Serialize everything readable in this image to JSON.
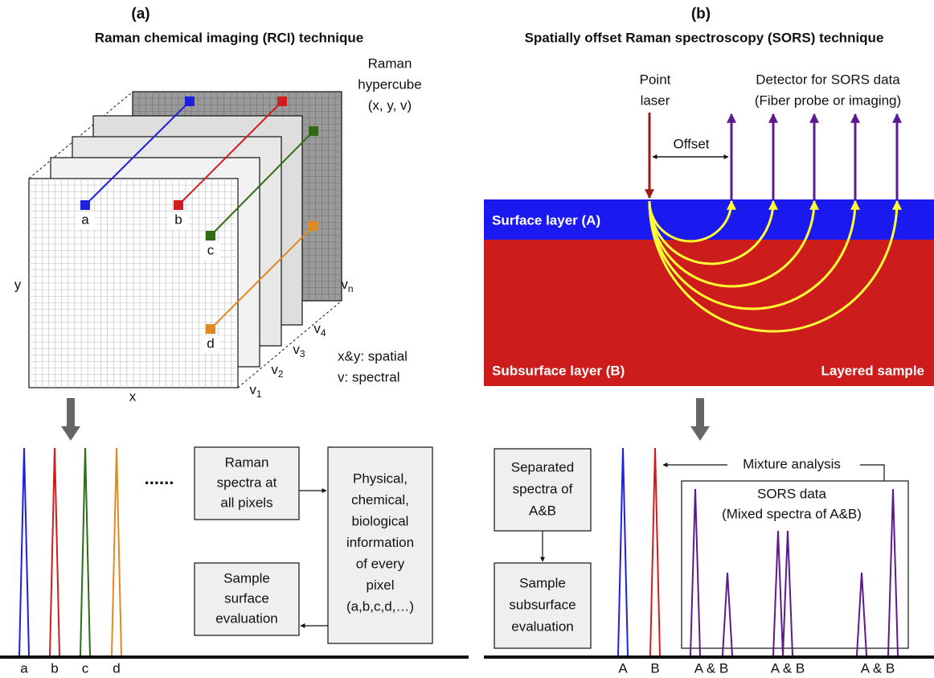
{
  "panel_a": {
    "label": "(a)",
    "title": "Raman chemical imaging (RCI) technique",
    "hypercube_label": [
      "Raman",
      "hypercube",
      "(x, y, v)"
    ],
    "pixels": [
      "a",
      "b",
      "c",
      "d"
    ],
    "x_axis": "x",
    "y_axis": "y",
    "bands": [
      {
        "symbol": "v",
        "index": "1"
      },
      {
        "symbol": "v",
        "index": "2"
      },
      {
        "symbol": "v",
        "index": "3"
      },
      {
        "symbol": "v",
        "index": "4"
      },
      {
        "symbol": "v",
        "index": "n"
      }
    ],
    "legend": [
      "x&y: spatial",
      "v: spectral"
    ],
    "ellipsis": "......",
    "spectra_box": [
      "Raman",
      "spectra at",
      "all pixels"
    ],
    "information_box": [
      "Physical,",
      "chemical,",
      "biological",
      "information",
      "of every",
      "pixel",
      "(a,b,c,d,…)"
    ],
    "evaluation_box": [
      "Sample",
      "surface",
      "evaluation"
    ],
    "spectrum_labels": [
      "a",
      "b",
      "c",
      "d"
    ]
  },
  "panel_b": {
    "label": "(b)",
    "title": "Spatially offset Raman spectroscopy (SORS) technique",
    "laser_label": [
      "Point",
      "laser"
    ],
    "detector_label": [
      "Detector for SORS data",
      "(Fiber probe or imaging)"
    ],
    "offset": "Offset",
    "surface_layer": "Surface layer (A)",
    "subsurface_layer": "Subsurface layer (B)",
    "sample": "Layered sample",
    "mixture": "Mixture analysis",
    "sors_box": [
      "SORS data",
      "(Mixed spectra of A&B)"
    ],
    "separated_box": [
      "Separated",
      "spectra of",
      "A&B"
    ],
    "evaluation_box": [
      "Sample",
      "subsurface",
      "evaluation"
    ],
    "spectrum_labels": [
      "A",
      "B",
      "A & B",
      "A & B",
      "A & B"
    ]
  }
}
